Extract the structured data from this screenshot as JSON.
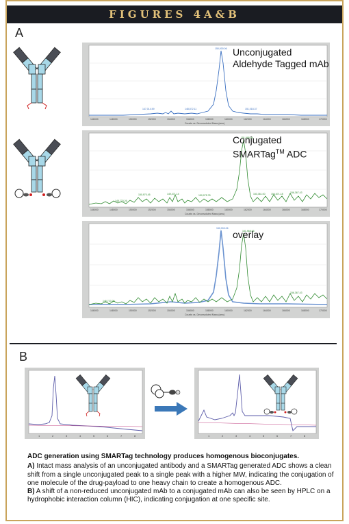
{
  "header": {
    "title": "FIGURES 4A&B"
  },
  "panel_a": {
    "label": "A",
    "spectra": [
      {
        "title_line1": "Unconjugated",
        "title_line2": "Aldehyde Tagged mAb",
        "color": "#3a6fc0"
      },
      {
        "title_line1": "Conjugated",
        "title_line2": "SMARTag",
        "title_sup": "TM",
        "title_suffix": " ADC",
        "color": "#2f8a2f"
      },
      {
        "title_line1": "overlay",
        "title_line2": "",
        "color": "#2f8a2f"
      }
    ],
    "x_axis_label": "Counts vs. Deconvoluted Mass (amu)",
    "x_ticks": [
      "146000",
      "148000",
      "150000",
      "152000",
      "154000",
      "156000",
      "158000",
      "160000",
      "162000",
      "164000",
      "166000",
      "168000",
      "170000"
    ]
  },
  "panel_b": {
    "label": "B"
  },
  "caption": {
    "headline": "ADC generation using SMARTag technology produces homogenous bioconjugates.",
    "part_a_label": "A)",
    "part_a_text": " Intact mass analysis of an unconjugated antibody and a SMARTag generated ADC shows a clean shift from a single unconjugated peak to a single peak with a higher MW, indicating the conjugation of one molecule of the drug-payload to one heavy chain to create a homogenous ADC.",
    "part_b_label": "B)",
    "part_b_text": " A shift of a non-reduced unconjugated mAb to a conjugated mAb can also be seen by HPLC on a hydrophobic interaction column (HIC), indicating conjugation at one specific site."
  },
  "colors": {
    "header_bg": "#1a1c22",
    "header_text": "#e3c27a",
    "frame": "#c9a45c",
    "antibody_light": "#a8d8e8",
    "antibody_dark": "#4a4d55",
    "blue_trace": "#3a6fc0",
    "green_trace": "#2f8a2f"
  }
}
